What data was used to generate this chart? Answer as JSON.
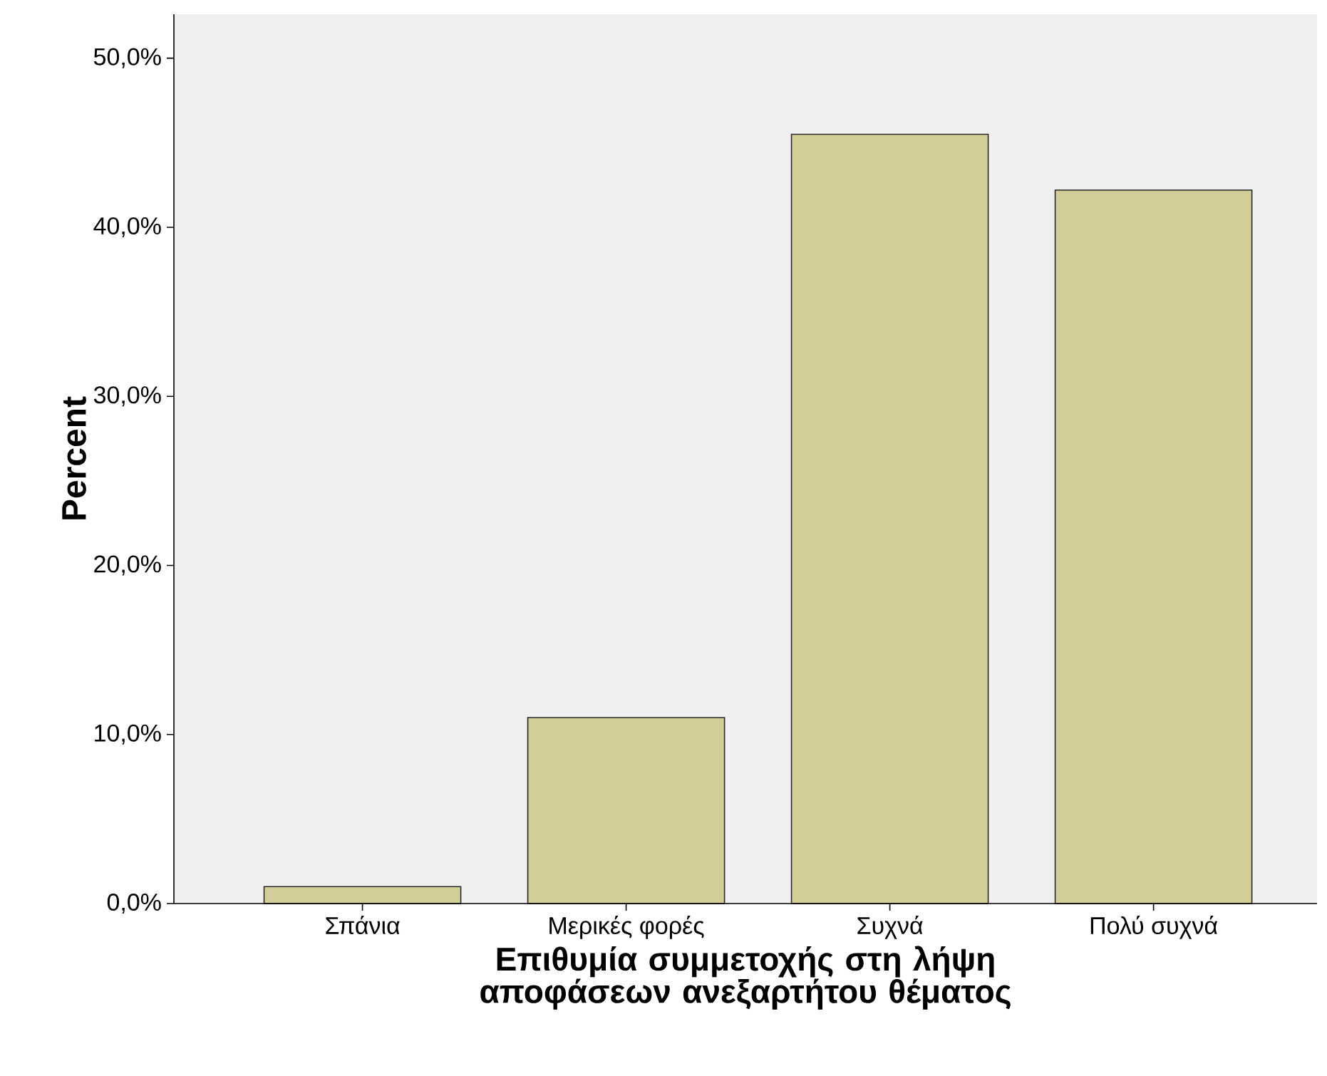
{
  "chart_data": {
    "type": "bar",
    "xlabel": "Επιθυμία συμμετοχής στη λήψη αποφάσεων ανεξαρτήτου θέματος",
    "ylabel": "Percent",
    "categories": [
      "Σπάνια",
      "Μερικές φορές",
      "Συχνά",
      "Πολύ συχνά"
    ],
    "values": [
      1.0,
      11.0,
      45.5,
      42.2
    ],
    "color": "#d3ce97",
    "ylim": [
      0,
      52.6
    ],
    "yticks": [
      {
        "value": 0,
        "label": "0,0%"
      },
      {
        "value": 10,
        "label": "10,0%"
      },
      {
        "value": 20,
        "label": "20,0%"
      },
      {
        "value": 30,
        "label": "30,0%"
      },
      {
        "value": 40,
        "label": "40,0%"
      },
      {
        "value": 50,
        "label": "50,0%"
      }
    ],
    "grid": false
  }
}
